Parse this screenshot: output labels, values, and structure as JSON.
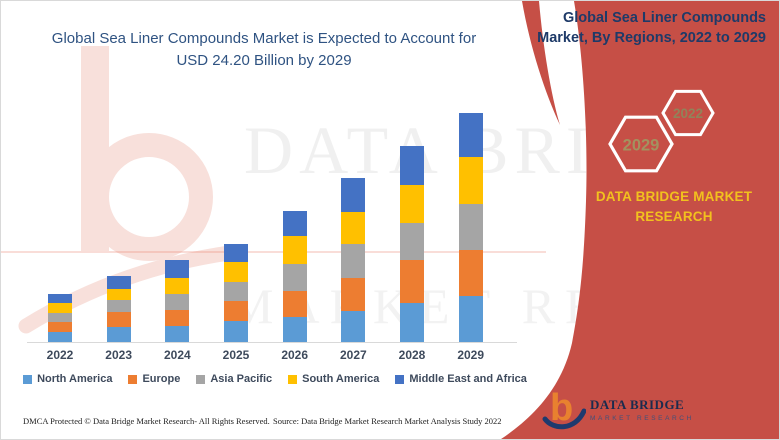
{
  "left_panel": {
    "title_line1": "Global Sea Liner Compounds Market is Expected to Account for",
    "title_line2": "USD 24.20 Billion by 2029",
    "title_color": "#2F5382"
  },
  "chart_data": {
    "type": "bar",
    "stacked": true,
    "title": "Global Sea Liner Compounds Market, By Regions, 2022 to 2029",
    "unit": "USD Billion",
    "categories": [
      "2022",
      "2023",
      "2024",
      "2025",
      "2026",
      "2027",
      "2028",
      "2029"
    ],
    "series": [
      {
        "name": "North America",
        "color": "#5B9BD5",
        "values": [
          1.02,
          1.61,
          1.72,
          2.25,
          2.61,
          3.3,
          4.11,
          4.82
        ]
      },
      {
        "name": "Europe",
        "color": "#ED7D31",
        "values": [
          1.05,
          1.51,
          1.69,
          2.11,
          2.82,
          3.48,
          4.57,
          4.85
        ]
      },
      {
        "name": "Asia Pacific",
        "color": "#A5A5A5",
        "values": [
          0.95,
          1.3,
          1.66,
          1.93,
          2.82,
          3.59,
          3.9,
          4.93
        ]
      },
      {
        "name": "South America",
        "color": "#FFC000",
        "values": [
          1.05,
          1.16,
          1.66,
          2.11,
          2.92,
          3.38,
          4.04,
          4.93
        ]
      },
      {
        "name": "Middle East and Africa",
        "color": "#4472C4",
        "values": [
          1.05,
          1.34,
          1.93,
          1.93,
          2.67,
          3.56,
          4.11,
          4.67
        ]
      }
    ],
    "totals": [
      5.12,
      6.92,
      8.66,
      10.33,
      13.84,
      17.31,
      20.73,
      24.2
    ],
    "ylim": [
      0,
      24.2
    ],
    "grid": false,
    "legend_position": "bottom",
    "axis_color": "#D9D9D9",
    "category_label_color": "#3E4A5C"
  },
  "right_panel": {
    "title": "Global Sea Liner Compounds Market, By Regions, 2022 to 2029",
    "panel_color": "#C64F46",
    "title_color": "#1E3A68",
    "hexagons": [
      {
        "label": "2029",
        "text_color": "#A3925F"
      },
      {
        "label": "2022",
        "text_color": "#91835A"
      }
    ],
    "brand_text": "DATA BRIDGE MARKET RESEARCH",
    "brand_color": "#F2C11E"
  },
  "footer": {
    "dmca": "DMCA Protected © Data Bridge Market Research- All Rights Reserved.",
    "source": "Source: Data Bridge Market Research Market Analysis Study 2022",
    "logo_title": "DATA BRIDGE",
    "logo_subtitle": "MARKET RESEARCH"
  },
  "watermark": {
    "line1": "DATA BRIDGE",
    "line2": "MARKET RESEARCH"
  }
}
